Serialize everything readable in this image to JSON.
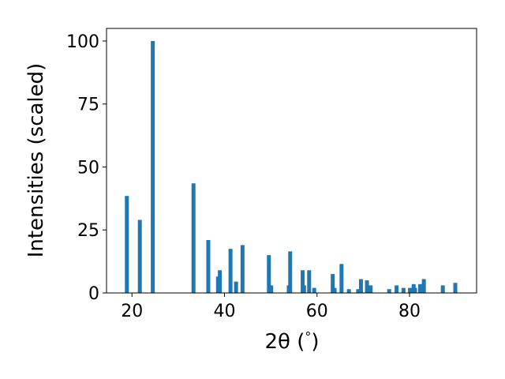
{
  "chart_data": {
    "type": "bar",
    "title": "",
    "xlabel": "2θ (°)",
    "xlabel_parts": {
      "symbol": "2θ",
      "open": " (",
      "unit": "°",
      "close": ")"
    },
    "ylabel": "Intensities (scaled)",
    "xlim": [
      14.5,
      94.5
    ],
    "ylim": [
      0,
      105
    ],
    "xticks": [
      20,
      40,
      60,
      80
    ],
    "yticks": [
      0,
      25,
      50,
      75,
      100
    ],
    "grid": false,
    "legend": "none",
    "bar_color": "#1f77b4",
    "peaks": {
      "x": [
        18.9,
        21.7,
        24.5,
        33.3,
        36.5,
        38.6,
        39.0,
        41.3,
        42.5,
        43.9,
        49.6,
        50.1,
        53.9,
        54.2,
        56.9,
        57.2,
        58.3,
        59.4,
        63.4,
        63.8,
        65.3,
        66.9,
        68.9,
        69.5,
        70.8,
        71.6,
        75.6,
        77.2,
        78.7,
        80.1,
        80.9,
        81.2,
        82.3,
        83.1,
        87.2,
        89.9
      ],
      "y": [
        38.5,
        29,
        100,
        43.5,
        21,
        6.5,
        9,
        17.5,
        4.5,
        19,
        15,
        3,
        3,
        16.5,
        9,
        3,
        9,
        2,
        7.5,
        2,
        11.5,
        1.5,
        1.5,
        5.5,
        5,
        3,
        1.5,
        3,
        2,
        2,
        3.5,
        2,
        3.5,
        5.5,
        3,
        4
      ]
    }
  }
}
